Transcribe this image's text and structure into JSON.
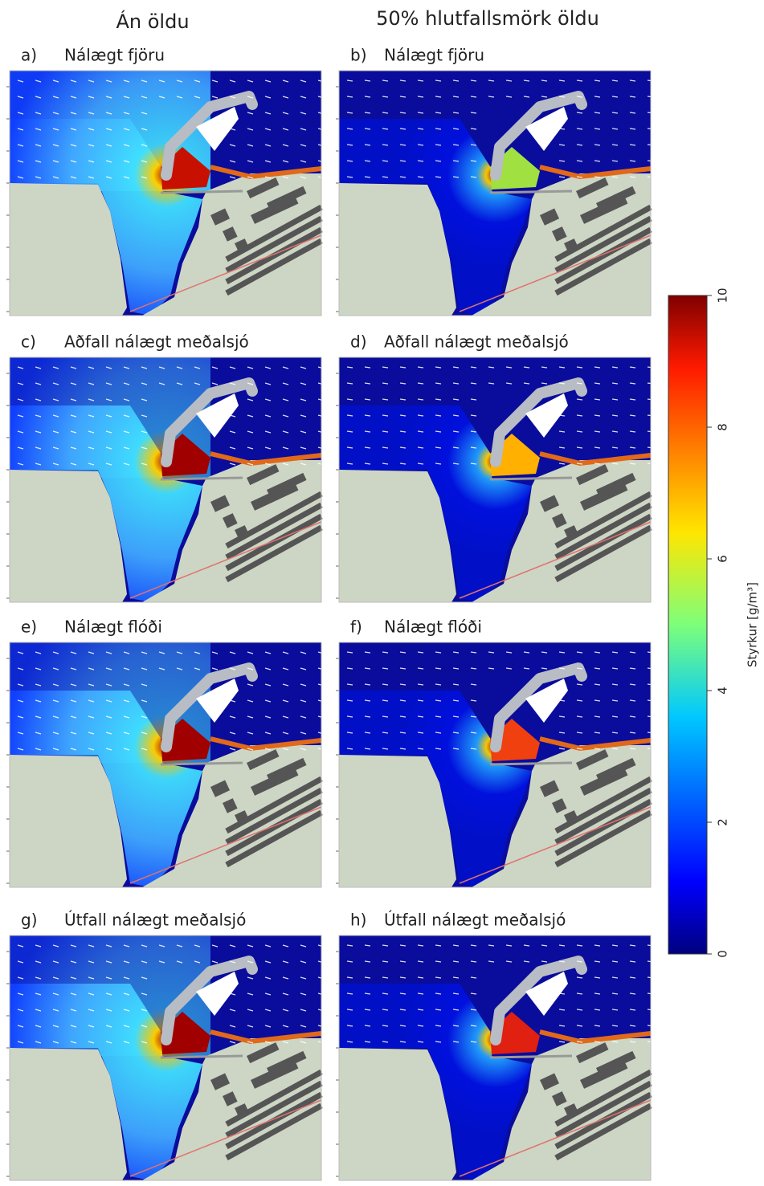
{
  "column_headers": [
    "Án öldu",
    "50% hlutfallsmörk öldu"
  ],
  "panels": [
    {
      "letter": "a)",
      "title": "Nálægt fjöru"
    },
    {
      "letter": "b)",
      "title": "Nálægt fjöru"
    },
    {
      "letter": "c)",
      "title": "Aðfall nálægt meðalsjó"
    },
    {
      "letter": "d)",
      "title": "Aðfall nálægt meðalsjó"
    },
    {
      "letter": "e)",
      "title": "Nálægt flóði"
    },
    {
      "letter": "f)",
      "title": "Nálægt flóði"
    },
    {
      "letter": "g)",
      "title": "Útfall nálægt meðalsjó"
    },
    {
      "letter": "h)",
      "title": "Útfall nálægt meðalsjó"
    }
  ],
  "colorbar": {
    "label": "Styrkur [g/m³]",
    "lim": [
      0,
      10
    ],
    "ticks": [
      0,
      2,
      4,
      6,
      8,
      10
    ],
    "colormap": "jet"
  }
}
